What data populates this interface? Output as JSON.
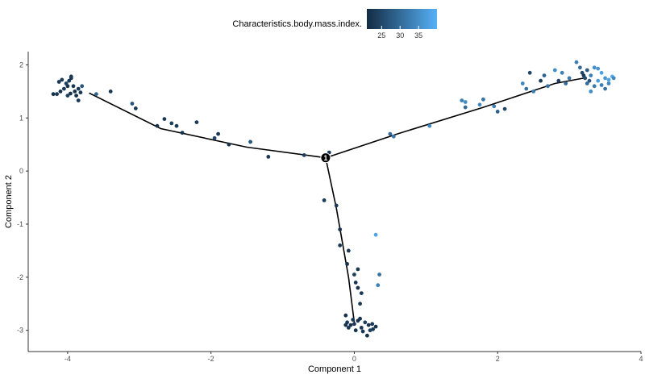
{
  "chart_data": {
    "type": "scatter",
    "xlabel": "Component 1",
    "ylabel": "Component 2",
    "xlim": [
      -4.55,
      4.0
    ],
    "ylim": [
      -3.4,
      2.25
    ],
    "x_ticks": [
      -4,
      -2,
      0,
      2,
      4
    ],
    "y_ticks": [
      -3,
      -2,
      -1,
      0,
      1,
      2
    ],
    "grid": false,
    "legend": {
      "title": "Characteristics.body.mass.index.",
      "placement": "top",
      "ticks": [
        25,
        30,
        35
      ],
      "range": [
        21,
        40
      ],
      "color_low": "#132b43",
      "color_high": "#56b1f7"
    },
    "trajectory": {
      "root": {
        "x": -0.4,
        "y": 0.25,
        "label": "1"
      },
      "branches": [
        [
          [
            -0.4,
            0.25
          ],
          [
            -1.5,
            0.45
          ],
          [
            -2.7,
            0.8
          ],
          [
            -3.7,
            1.47
          ]
        ],
        [
          [
            -0.4,
            0.25
          ],
          [
            0.6,
            0.7
          ],
          [
            1.8,
            1.2
          ],
          [
            2.8,
            1.65
          ],
          [
            3.2,
            1.75
          ]
        ],
        [
          [
            -0.4,
            0.25
          ],
          [
            -0.25,
            -0.7
          ],
          [
            -0.08,
            -2.0
          ],
          [
            0.0,
            -2.85
          ]
        ]
      ]
    },
    "points": [
      {
        "x": -4.15,
        "y": 1.45,
        "c": 23
      },
      {
        "x": -4.1,
        "y": 1.5,
        "c": 22
      },
      {
        "x": -4.05,
        "y": 1.55,
        "c": 23
      },
      {
        "x": -4.0,
        "y": 1.6,
        "c": 22
      },
      {
        "x": -3.98,
        "y": 1.7,
        "c": 23
      },
      {
        "x": -3.95,
        "y": 1.75,
        "c": 22
      },
      {
        "x": -4.08,
        "y": 1.72,
        "c": 23
      },
      {
        "x": -4.02,
        "y": 1.65,
        "c": 24
      },
      {
        "x": -3.92,
        "y": 1.6,
        "c": 23
      },
      {
        "x": -3.9,
        "y": 1.5,
        "c": 22
      },
      {
        "x": -3.85,
        "y": 1.55,
        "c": 23
      },
      {
        "x": -3.8,
        "y": 1.6,
        "c": 27
      },
      {
        "x": -3.82,
        "y": 1.48,
        "c": 23
      },
      {
        "x": -3.96,
        "y": 1.46,
        "c": 22
      },
      {
        "x": -4.12,
        "y": 1.68,
        "c": 23
      },
      {
        "x": -4.0,
        "y": 1.42,
        "c": 24
      },
      {
        "x": -3.88,
        "y": 1.42,
        "c": 22
      },
      {
        "x": -3.85,
        "y": 1.33,
        "c": 23
      },
      {
        "x": -3.95,
        "y": 1.78,
        "c": 23
      },
      {
        "x": -4.2,
        "y": 1.45,
        "c": 22
      },
      {
        "x": -3.6,
        "y": 1.45,
        "c": 29
      },
      {
        "x": -3.4,
        "y": 1.5,
        "c": 23
      },
      {
        "x": -3.1,
        "y": 1.27,
        "c": 27
      },
      {
        "x": -3.05,
        "y": 1.18,
        "c": 23
      },
      {
        "x": -2.75,
        "y": 0.85,
        "c": 22
      },
      {
        "x": -2.65,
        "y": 0.98,
        "c": 23
      },
      {
        "x": -2.55,
        "y": 0.9,
        "c": 24
      },
      {
        "x": -2.48,
        "y": 0.85,
        "c": 23
      },
      {
        "x": -2.4,
        "y": 0.72,
        "c": 22
      },
      {
        "x": -2.2,
        "y": 0.92,
        "c": 23
      },
      {
        "x": -1.95,
        "y": 0.62,
        "c": 25
      },
      {
        "x": -1.9,
        "y": 0.7,
        "c": 23
      },
      {
        "x": -1.75,
        "y": 0.5,
        "c": 22
      },
      {
        "x": -1.45,
        "y": 0.55,
        "c": 27
      },
      {
        "x": -1.2,
        "y": 0.27,
        "c": 23
      },
      {
        "x": -0.7,
        "y": 0.3,
        "c": 24
      },
      {
        "x": -0.35,
        "y": 0.35,
        "c": 23
      },
      {
        "x": -0.42,
        "y": -0.55,
        "c": 23
      },
      {
        "x": -0.25,
        "y": -0.65,
        "c": 23
      },
      {
        "x": -0.2,
        "y": -1.1,
        "c": 22
      },
      {
        "x": -0.2,
        "y": -1.4,
        "c": 23
      },
      {
        "x": -0.08,
        "y": -1.5,
        "c": 23
      },
      {
        "x": -0.1,
        "y": -1.75,
        "c": 22
      },
      {
        "x": 0.05,
        "y": -1.85,
        "c": 23
      },
      {
        "x": 0.0,
        "y": -1.95,
        "c": 24
      },
      {
        "x": 0.02,
        "y": -2.1,
        "c": 23
      },
      {
        "x": 0.05,
        "y": -2.2,
        "c": 22
      },
      {
        "x": 0.1,
        "y": -2.3,
        "c": 23
      },
      {
        "x": 0.08,
        "y": -2.5,
        "c": 23
      },
      {
        "x": -0.12,
        "y": -2.72,
        "c": 22
      },
      {
        "x": 0.3,
        "y": -1.2,
        "c": 38
      },
      {
        "x": 0.35,
        "y": -1.95,
        "c": 31
      },
      {
        "x": 0.33,
        "y": -2.15,
        "c": 33
      },
      {
        "x": -0.1,
        "y": -2.85,
        "c": 23
      },
      {
        "x": -0.05,
        "y": -2.9,
        "c": 22
      },
      {
        "x": 0.0,
        "y": -2.88,
        "c": 23
      },
      {
        "x": 0.05,
        "y": -2.82,
        "c": 22
      },
      {
        "x": 0.1,
        "y": -2.95,
        "c": 23
      },
      {
        "x": 0.15,
        "y": -2.85,
        "c": 24
      },
      {
        "x": 0.2,
        "y": -2.9,
        "c": 22
      },
      {
        "x": 0.25,
        "y": -2.88,
        "c": 23
      },
      {
        "x": 0.3,
        "y": -2.93,
        "c": 22
      },
      {
        "x": -0.08,
        "y": -2.95,
        "c": 23
      },
      {
        "x": 0.02,
        "y": -3.0,
        "c": 22
      },
      {
        "x": 0.12,
        "y": -3.02,
        "c": 23
      },
      {
        "x": 0.22,
        "y": -3.0,
        "c": 24
      },
      {
        "x": 0.18,
        "y": -3.1,
        "c": 22
      },
      {
        "x": -0.02,
        "y": -2.8,
        "c": 23
      },
      {
        "x": 0.08,
        "y": -2.78,
        "c": 22
      },
      {
        "x": 0.26,
        "y": -2.98,
        "c": 23
      },
      {
        "x": -0.12,
        "y": -2.9,
        "c": 22
      },
      {
        "x": 0.5,
        "y": 0.7,
        "c": 30
      },
      {
        "x": 0.55,
        "y": 0.65,
        "c": 32
      },
      {
        "x": 1.05,
        "y": 0.85,
        "c": 34
      },
      {
        "x": 1.5,
        "y": 1.33,
        "c": 33
      },
      {
        "x": 1.55,
        "y": 1.3,
        "c": 35
      },
      {
        "x": 1.55,
        "y": 1.2,
        "c": 30
      },
      {
        "x": 1.75,
        "y": 1.25,
        "c": 34
      },
      {
        "x": 1.8,
        "y": 1.35,
        "c": 31
      },
      {
        "x": 1.95,
        "y": 1.22,
        "c": 33
      },
      {
        "x": 2.0,
        "y": 1.12,
        "c": 29
      },
      {
        "x": 2.1,
        "y": 1.17,
        "c": 25
      },
      {
        "x": 2.35,
        "y": 1.65,
        "c": 34
      },
      {
        "x": 2.4,
        "y": 1.55,
        "c": 31
      },
      {
        "x": 2.45,
        "y": 1.85,
        "c": 25
      },
      {
        "x": 2.5,
        "y": 1.5,
        "c": 33
      },
      {
        "x": 2.6,
        "y": 1.7,
        "c": 23
      },
      {
        "x": 2.65,
        "y": 1.8,
        "c": 29
      },
      {
        "x": 2.7,
        "y": 1.6,
        "c": 31
      },
      {
        "x": 2.8,
        "y": 1.9,
        "c": 35
      },
      {
        "x": 2.85,
        "y": 1.7,
        "c": 24
      },
      {
        "x": 2.9,
        "y": 1.85,
        "c": 33
      },
      {
        "x": 2.95,
        "y": 1.65,
        "c": 30
      },
      {
        "x": 3.0,
        "y": 1.75,
        "c": 32
      },
      {
        "x": 3.1,
        "y": 2.05,
        "c": 33
      },
      {
        "x": 3.15,
        "y": 1.95,
        "c": 30
      },
      {
        "x": 3.18,
        "y": 1.85,
        "c": 25
      },
      {
        "x": 3.2,
        "y": 1.8,
        "c": 23
      },
      {
        "x": 3.22,
        "y": 1.75,
        "c": 26
      },
      {
        "x": 3.25,
        "y": 1.9,
        "c": 28
      },
      {
        "x": 3.28,
        "y": 1.7,
        "c": 27
      },
      {
        "x": 3.3,
        "y": 1.8,
        "c": 33
      },
      {
        "x": 3.35,
        "y": 1.95,
        "c": 35
      },
      {
        "x": 3.4,
        "y": 1.7,
        "c": 37
      },
      {
        "x": 3.45,
        "y": 1.85,
        "c": 38
      },
      {
        "x": 3.5,
        "y": 1.75,
        "c": 36
      },
      {
        "x": 3.55,
        "y": 1.65,
        "c": 34
      },
      {
        "x": 3.6,
        "y": 1.78,
        "c": 39
      },
      {
        "x": 3.35,
        "y": 1.6,
        "c": 32
      },
      {
        "x": 3.45,
        "y": 1.62,
        "c": 33
      },
      {
        "x": 3.5,
        "y": 1.55,
        "c": 31
      },
      {
        "x": 3.62,
        "y": 1.75,
        "c": 34
      },
      {
        "x": 3.4,
        "y": 1.93,
        "c": 36
      },
      {
        "x": 3.25,
        "y": 1.65,
        "c": 30
      },
      {
        "x": 3.3,
        "y": 1.5,
        "c": 35
      },
      {
        "x": 3.55,
        "y": 1.72,
        "c": 38
      }
    ]
  }
}
